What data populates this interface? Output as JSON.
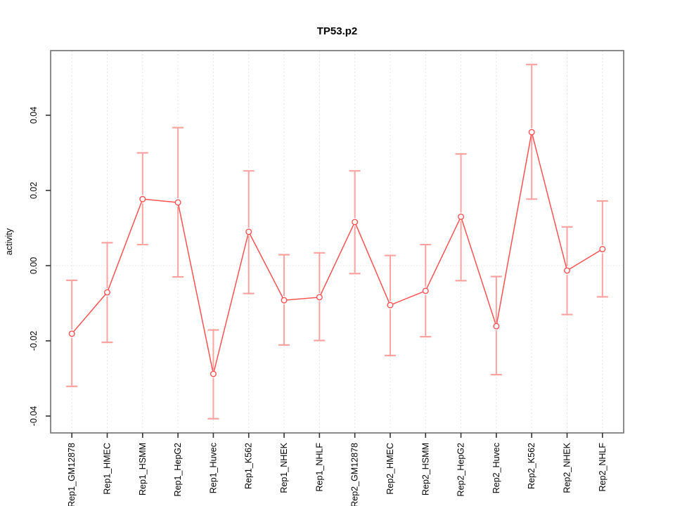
{
  "title": "TP53.p2",
  "chart_data": {
    "type": "line",
    "title": "TP53.p2",
    "xlabel": "",
    "ylabel": "activity",
    "legend": "none",
    "grid": "vertical dashed gridline at each category; dotted horizontal line at y=0",
    "marker": "open-circle",
    "ylim": [
      -0.0445,
      0.0572
    ],
    "yticks": [
      -0.04,
      -0.02,
      0.0,
      0.02,
      0.04
    ],
    "ytick_labels": [
      "-0.04",
      "-0.02",
      "0.00",
      "0.02",
      "0.04"
    ],
    "categories": [
      "Rep1_GM12878",
      "Rep1_HMEC",
      "Rep1_HSMM",
      "Rep1_HepG2",
      "Rep1_Huvec",
      "Rep1_K562",
      "Rep1_NHEK",
      "Rep1_NHLF",
      "Rep2_GM12878",
      "Rep2_HMEC",
      "Rep2_HSMM",
      "Rep2_HepG2",
      "Rep2_Huvec",
      "Rep2_K562",
      "Rep2_NHEK",
      "Rep2_NHLF"
    ],
    "series": [
      {
        "name": "activity",
        "values": [
          -0.0181,
          -0.0071,
          0.0177,
          0.0168,
          -0.0288,
          0.009,
          -0.0092,
          -0.0084,
          0.0116,
          -0.0105,
          -0.0067,
          0.013,
          -0.0161,
          0.0355,
          -0.0013,
          0.0044
        ],
        "error_low": [
          -0.0321,
          -0.0204,
          0.0056,
          -0.003,
          -0.0407,
          -0.0074,
          -0.0211,
          -0.0199,
          -0.0021,
          -0.0239,
          -0.0189,
          -0.004,
          -0.029,
          0.0177,
          -0.013,
          -0.0083
        ],
        "error_high": [
          -0.0039,
          0.0061,
          0.03,
          0.0367,
          -0.0171,
          0.0252,
          0.0029,
          0.0034,
          0.0252,
          0.0027,
          0.0056,
          0.0297,
          -0.0029,
          0.0535,
          0.0103,
          0.0172
        ]
      }
    ],
    "colors": {
      "line": "#fa5252",
      "marker_stroke": "#fa5252",
      "marker_fill": "#ffffff",
      "error_bar": "#fba3a1",
      "gridline": "#e2e2e2",
      "zero_line": "#e2e2e2",
      "box": "#6e6e6e",
      "tick": "#333333",
      "tick_label": "#000000"
    }
  }
}
